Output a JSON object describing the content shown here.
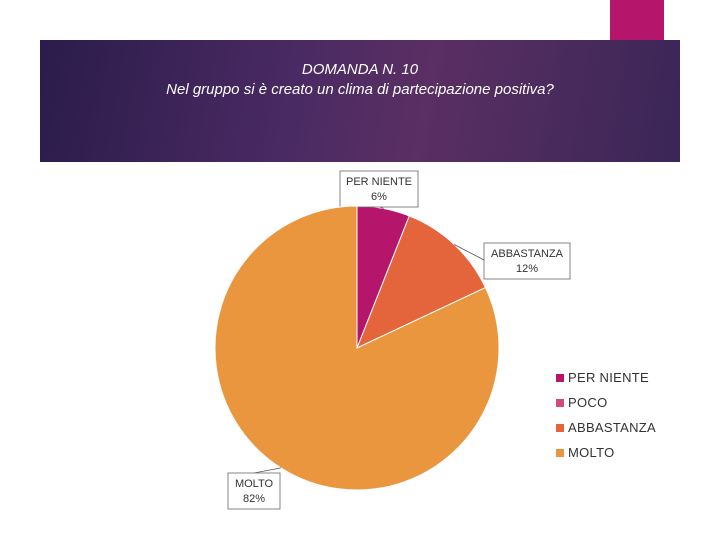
{
  "header": {
    "title_line1": "DOMANDA N. 10",
    "title_line2": "Nel gruppo si è creato un clima di partecipazione positiva?"
  },
  "colors": {
    "header_band": "#4a2a63",
    "accent_tab": "#b5156b"
  },
  "chart_data": {
    "type": "pie",
    "title": "",
    "slices": [
      {
        "label": "PER NIENTE",
        "value": 6,
        "color": "#b5156b",
        "data_label": "PER NIENTE\n6%"
      },
      {
        "label": "POCO",
        "value": 0,
        "color": "#d24a7c",
        "data_label": ""
      },
      {
        "label": "ABBASTANZA",
        "value": 12,
        "color": "#e4643c",
        "data_label": "ABBASTANZA\n12%"
      },
      {
        "label": "MOLTO",
        "value": 82,
        "color": "#ea963e",
        "data_label": "MOLTO\n82%"
      }
    ],
    "legend": [
      "PER NIENTE",
      "POCO",
      "ABBASTANZA",
      "MOLTO"
    ],
    "legend_position": "right"
  }
}
